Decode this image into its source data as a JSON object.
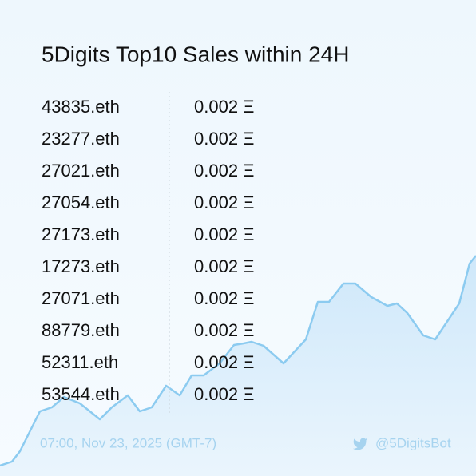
{
  "header": {
    "title": "5Digits Top10 Sales within 24H"
  },
  "table": {
    "rows": [
      [
        "43835.eth",
        "0.002 Ξ"
      ],
      [
        "23277.eth",
        "0.002 Ξ"
      ],
      [
        "27021.eth",
        "0.002 Ξ"
      ],
      [
        "27054.eth",
        "0.002 Ξ"
      ],
      [
        "27173.eth",
        "0.002 Ξ"
      ],
      [
        "17273.eth",
        "0.002 Ξ"
      ],
      [
        "27071.eth",
        "0.002 Ξ"
      ],
      [
        "88779.eth",
        "0.002 Ξ"
      ],
      [
        "52311.eth",
        "0.002 Ξ"
      ],
      [
        "53544.eth",
        "0.002 Ξ"
      ]
    ]
  },
  "footer": {
    "timestamp": "07:00, Nov 23, 2025 (GMT-7)",
    "handle": "@5DigitsBot"
  }
}
